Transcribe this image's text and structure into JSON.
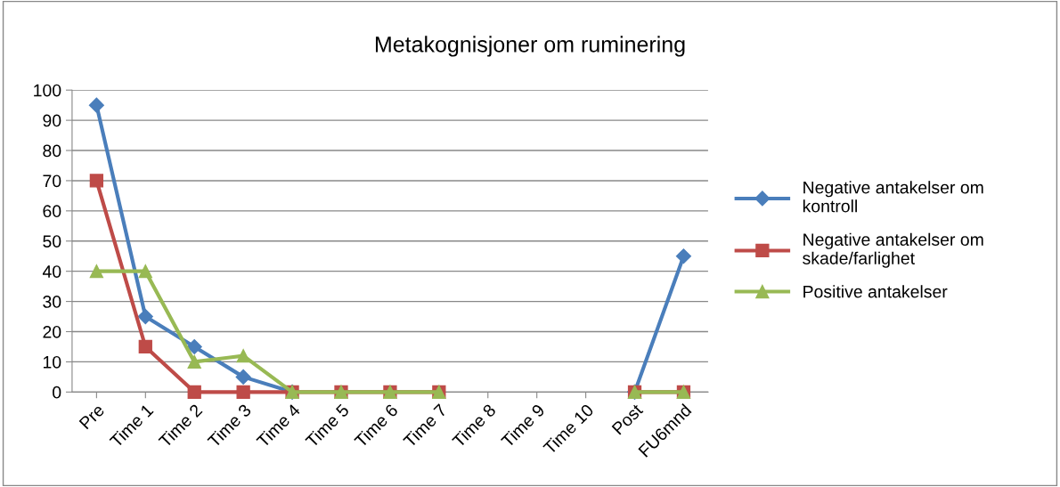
{
  "chart_data": {
    "type": "line",
    "title": "Metakognisjoner om ruminering",
    "categories": [
      "Pre",
      "Time 1",
      "Time 2",
      "Time 3",
      "Time 4",
      "Time 5",
      "Time 6",
      "Time 7",
      "Time 8",
      "Time 9",
      "Time 10",
      "Post",
      "FU6mnd"
    ],
    "series": [
      {
        "name": "Negative antakelser om kontroll",
        "color": "#4a7ebb",
        "marker": "diamond",
        "values": [
          95,
          25,
          15,
          5,
          0,
          null,
          null,
          null,
          null,
          null,
          null,
          0,
          45
        ]
      },
      {
        "name": "Negative antakelser om skade/farlighet",
        "color": "#be4b48",
        "marker": "square",
        "values": [
          70,
          15,
          0,
          0,
          0,
          0,
          0,
          0,
          null,
          null,
          null,
          0,
          0
        ]
      },
      {
        "name": "Positive antakelser",
        "color": "#98b954",
        "marker": "triangle",
        "values": [
          40,
          40,
          10,
          12,
          0,
          0,
          0,
          0,
          null,
          null,
          null,
          0,
          0
        ]
      }
    ],
    "ylim": [
      0,
      100
    ],
    "yticks": [
      0,
      10,
      20,
      30,
      40,
      50,
      60,
      70,
      80,
      90,
      100
    ],
    "grid": "y",
    "legend": "right"
  }
}
